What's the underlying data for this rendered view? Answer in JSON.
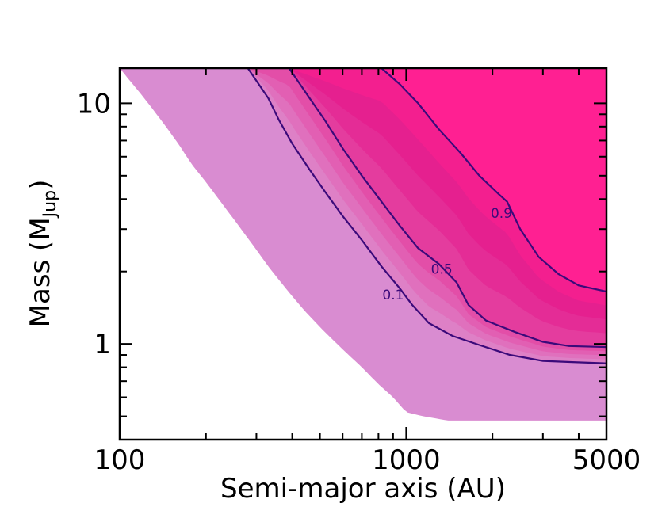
{
  "chart_data": {
    "type": "contour",
    "xlabel": "Semi-major axis (AU)",
    "ylabel_main": "Mass (M",
    "ylabel_sub": "Jup",
    "ylabel_close": ")",
    "xscale": "log",
    "yscale": "log",
    "xlim": [
      100,
      5000
    ],
    "ylim": [
      0.4,
      14
    ],
    "x_tick_labels": [
      {
        "value": 100,
        "label": "100"
      },
      {
        "value": 1000,
        "label": "1000"
      },
      {
        "value": 5000,
        "label": "5000"
      }
    ],
    "y_tick_labels": [
      {
        "value": 1,
        "label": "1"
      },
      {
        "value": 10,
        "label": "10"
      }
    ],
    "x_minor_ticks": [
      200,
      300,
      400,
      500,
      600,
      700,
      800,
      900,
      2000,
      3000,
      4000
    ],
    "y_minor_ticks": [
      0.5,
      0.6,
      0.7,
      0.8,
      0.9,
      2,
      3,
      4,
      5,
      6,
      7,
      8,
      9
    ],
    "fill_levels": [
      {
        "level": 0.0,
        "color": "#d98cd1"
      },
      {
        "level": 0.1,
        "color": "#de80c6"
      },
      {
        "level": 0.2,
        "color": "#e070bd"
      },
      {
        "level": 0.3,
        "color": "#e25fb3"
      },
      {
        "level": 0.4,
        "color": "#e34ea8"
      },
      {
        "level": 0.5,
        "color": "#e43c9e"
      },
      {
        "level": 0.6,
        "color": "#e42c96"
      },
      {
        "level": 0.7,
        "color": "#e5208f"
      },
      {
        "level": 0.8,
        "color": "#f31f8f"
      },
      {
        "level": 0.9,
        "color": "#ff2092"
      }
    ],
    "region_boundary_lower_left": [
      [
        100,
        14
      ],
      [
        108,
        12.5
      ],
      [
        118,
        11.0
      ],
      [
        130,
        9.5
      ],
      [
        145,
        8.0
      ],
      [
        160,
        6.8
      ],
      [
        178,
        5.6
      ],
      [
        200,
        4.7
      ],
      [
        225,
        3.9
      ],
      [
        250,
        3.3
      ],
      [
        290,
        2.6
      ],
      [
        330,
        2.1
      ],
      [
        380,
        1.7
      ],
      [
        440,
        1.38
      ],
      [
        520,
        1.12
      ],
      [
        600,
        0.95
      ],
      [
        700,
        0.8
      ],
      [
        800,
        0.68
      ],
      [
        900,
        0.6
      ],
      [
        1000,
        0.52
      ],
      [
        1150,
        0.5
      ],
      [
        1400,
        0.48
      ],
      [
        1700,
        0.48
      ],
      [
        5000,
        0.48
      ]
    ],
    "contours": [
      {
        "label": "0.1",
        "label_at": [
          900,
          1.6
        ],
        "color": "#3b0a7a",
        "points": [
          [
            280,
            14
          ],
          [
            330,
            10.5
          ],
          [
            360,
            8.5
          ],
          [
            400,
            6.8
          ],
          [
            460,
            5.3
          ],
          [
            520,
            4.3
          ],
          [
            600,
            3.4
          ],
          [
            700,
            2.7
          ],
          [
            820,
            2.1
          ],
          [
            950,
            1.7
          ],
          [
            1050,
            1.45
          ],
          [
            1200,
            1.22
          ],
          [
            1450,
            1.08
          ],
          [
            1800,
            0.99
          ],
          [
            2300,
            0.9
          ],
          [
            3000,
            0.85
          ],
          [
            3800,
            0.84
          ],
          [
            5000,
            0.83
          ]
        ]
      },
      {
        "label": "0.5",
        "label_at": [
          1330,
          2.05
        ],
        "color": "#3b0a7a",
        "points": [
          [
            390,
            14
          ],
          [
            460,
            10.5
          ],
          [
            520,
            8.5
          ],
          [
            600,
            6.5
          ],
          [
            700,
            5.0
          ],
          [
            820,
            3.9
          ],
          [
            950,
            3.1
          ],
          [
            1100,
            2.5
          ],
          [
            1300,
            2.15
          ],
          [
            1500,
            1.8
          ],
          [
            1650,
            1.45
          ],
          [
            1900,
            1.25
          ],
          [
            2400,
            1.12
          ],
          [
            3000,
            1.02
          ],
          [
            3700,
            0.98
          ],
          [
            5000,
            0.97
          ]
        ]
      },
      {
        "label": "0.9",
        "label_at": [
          2150,
          3.5
        ],
        "color": "#3b0a7a",
        "points": [
          [
            820,
            14
          ],
          [
            950,
            12.0
          ],
          [
            1100,
            10.0
          ],
          [
            1300,
            7.8
          ],
          [
            1550,
            6.2
          ],
          [
            1800,
            5.0
          ],
          [
            2100,
            4.2
          ],
          [
            2250,
            3.9
          ],
          [
            2500,
            3.0
          ],
          [
            2900,
            2.3
          ],
          [
            3400,
            1.95
          ],
          [
            4000,
            1.75
          ],
          [
            5000,
            1.65
          ]
        ]
      }
    ]
  }
}
